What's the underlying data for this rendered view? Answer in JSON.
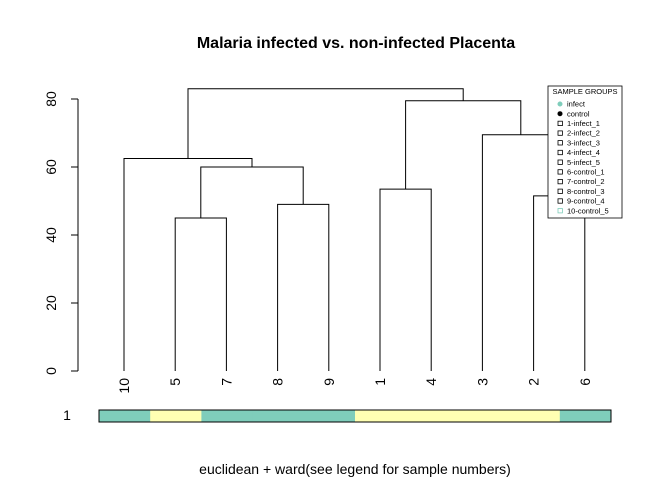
{
  "chart_data": {
    "type": "dendrogram",
    "title": "Malaria infected vs. non-infected Placenta",
    "xlabel": "euclidean + ward(see legend for sample numbers)",
    "ylabel": "",
    "ylim": [
      0,
      85
    ],
    "yticks": [
      0,
      20,
      40,
      60,
      80
    ],
    "leaf_order": [
      "10",
      "5",
      "7",
      "8",
      "9",
      "1",
      "4",
      "3",
      "2",
      "6"
    ],
    "merges": [
      {
        "left": "5",
        "right": "7",
        "height": 45
      },
      {
        "left": "8",
        "right": "9",
        "height": 49
      },
      {
        "left": "2",
        "right": "6",
        "height": 51.5
      },
      {
        "left": "1",
        "right": "4",
        "height": 53.5
      },
      {
        "left": "5,7",
        "right": "8,9",
        "height": 60
      },
      {
        "left": "10",
        "right": "5,7,8,9",
        "height": 62.5
      },
      {
        "left": "3",
        "right": "2,6",
        "height": 69.5
      },
      {
        "left": "1,4",
        "right": "3,2,6",
        "height": 79.5
      },
      {
        "left": "10,5,7,8,9",
        "right": "1,4,3,2,6",
        "height": 83
      }
    ],
    "color_bar": {
      "label": "1",
      "colors": [
        "#7FCDBB",
        "#FFFFB3",
        "#7FCDBB",
        "#7FCDBB",
        "#7FCDBB",
        "#FFFFB3",
        "#FFFFB3",
        "#FFFFB3",
        "#FFFFB3",
        "#7FCDBB"
      ]
    },
    "legend": {
      "title": "SAMPLE GROUPS",
      "position": "top-right",
      "entries": [
        {
          "label": "infect",
          "marker": "filled",
          "color": "#7FCDBB"
        },
        {
          "label": "control",
          "marker": "filled",
          "color": "#000000"
        },
        {
          "label": "1-infect_1",
          "marker": "open",
          "color": "#000000"
        },
        {
          "label": "2-infect_2",
          "marker": "open",
          "color": "#000000"
        },
        {
          "label": "3-infect_3",
          "marker": "open",
          "color": "#000000"
        },
        {
          "label": "4-infect_4",
          "marker": "open",
          "color": "#000000"
        },
        {
          "label": "5-infect_5",
          "marker": "open",
          "color": "#000000"
        },
        {
          "label": "6-control_1",
          "marker": "open",
          "color": "#000000"
        },
        {
          "label": "7-control_2",
          "marker": "open",
          "color": "#000000"
        },
        {
          "label": "8-control_3",
          "marker": "open",
          "color": "#000000"
        },
        {
          "label": "9-control_4",
          "marker": "open",
          "color": "#000000"
        },
        {
          "label": "10-control_5",
          "marker": "open",
          "color": "#7FCDBB"
        }
      ]
    }
  }
}
